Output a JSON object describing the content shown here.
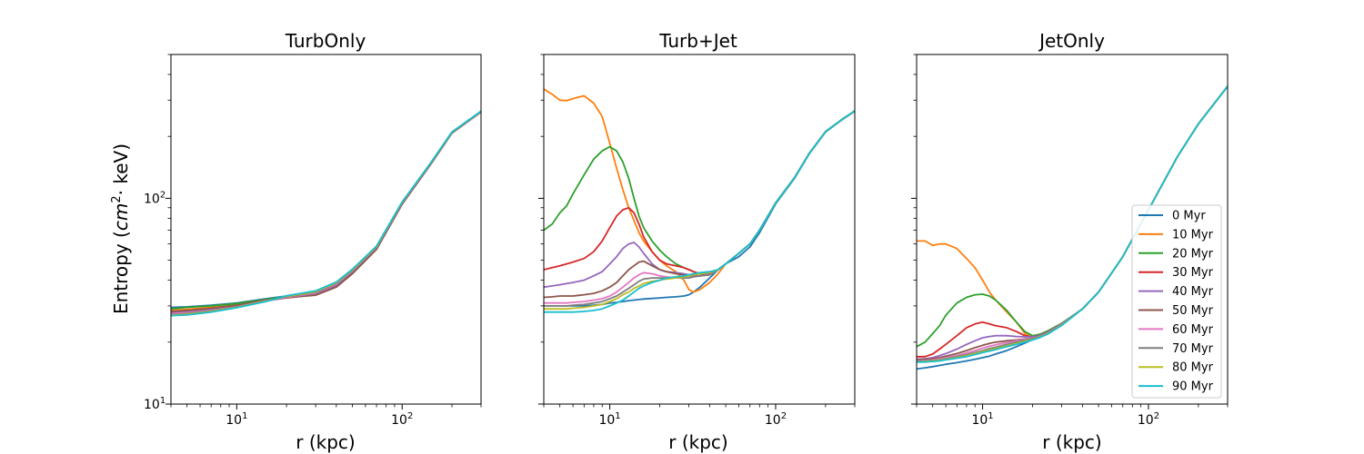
{
  "chart_data": [
    {
      "type": "line",
      "title": "TurbOnly",
      "xlabel": "r (kpc)",
      "ylabel": "Entropy (cm²· keV)",
      "xscale": "log",
      "yscale": "log",
      "xlim": [
        4,
        300
      ],
      "ylim": [
        10,
        500
      ],
      "x": [
        4,
        5,
        7,
        10,
        15,
        20,
        30,
        40,
        50,
        70,
        100,
        150,
        200,
        300
      ],
      "series": [
        {
          "name": "0 Myr",
          "values": [
            29.5,
            29.7,
            30.2,
            31.0,
            32.5,
            33.5,
            35.0,
            38.5,
            44.5,
            58,
            95,
            150,
            210,
            265
          ]
        },
        {
          "name": "10 Myr",
          "values": [
            28.5,
            28.9,
            29.5,
            30.3,
            32.0,
            33.0,
            34.5,
            38.0,
            44.0,
            57,
            94,
            148,
            208,
            263
          ]
        },
        {
          "name": "20 Myr",
          "values": [
            29.0,
            29.5,
            30.0,
            30.8,
            32.3,
            33.3,
            34.6,
            38.2,
            44.2,
            57.5,
            95,
            149,
            209,
            264
          ]
        },
        {
          "name": "30 Myr",
          "values": [
            28.0,
            28.3,
            29.0,
            30.0,
            31.8,
            32.8,
            34.0,
            37.5,
            43.5,
            57,
            94,
            148,
            208,
            263
          ]
        },
        {
          "name": "40 Myr",
          "values": [
            27.8,
            28.0,
            28.8,
            29.8,
            31.7,
            32.9,
            34.3,
            37.8,
            43.8,
            57.2,
            94.5,
            148.5,
            208.5,
            263.5
          ]
        },
        {
          "name": "50 Myr",
          "values": [
            28.2,
            28.5,
            29.2,
            30.2,
            32.0,
            32.9,
            33.8,
            37.0,
            43.0,
            56.5,
            93.5,
            147.5,
            207.5,
            262.5
          ]
        },
        {
          "name": "60 Myr",
          "values": [
            27.5,
            27.8,
            28.6,
            29.7,
            31.8,
            33.0,
            34.6,
            38.3,
            44.3,
            57.8,
            95,
            149,
            209,
            264
          ]
        },
        {
          "name": "70 Myr",
          "values": [
            27.2,
            27.5,
            28.4,
            29.6,
            31.7,
            33.2,
            34.9,
            38.6,
            44.6,
            58,
            95.5,
            149.5,
            209.5,
            264.5
          ]
        },
        {
          "name": "80 Myr",
          "values": [
            27.0,
            27.3,
            28.2,
            29.5,
            31.6,
            33.4,
            35.2,
            38.9,
            44.9,
            58.3,
            95.8,
            149.8,
            209.8,
            264.8
          ]
        },
        {
          "name": "90 Myr",
          "values": [
            26.9,
            27.1,
            28.0,
            29.4,
            31.5,
            33.6,
            35.5,
            39.2,
            45.2,
            58.6,
            96,
            150,
            210,
            265
          ]
        }
      ]
    },
    {
      "type": "line",
      "title": "Turb+Jet",
      "xlabel": "r (kpc)",
      "ylabel": "",
      "xscale": "log",
      "yscale": "log",
      "xlim": [
        4,
        300
      ],
      "ylim": [
        10,
        500
      ],
      "x": [
        4,
        4.5,
        5,
        5.5,
        6,
        7,
        8,
        9,
        10,
        11,
        12,
        13,
        14,
        15,
        16,
        18,
        20,
        22,
        25,
        28,
        30,
        32,
        35,
        40,
        45,
        50,
        60,
        70,
        80,
        100,
        130,
        160,
        200,
        250,
        300
      ],
      "series": [
        {
          "name": "0 Myr",
          "values": [
            30,
            30,
            30,
            30,
            30,
            30,
            30.2,
            30.5,
            31,
            31.2,
            31.5,
            31.8,
            32,
            32.2,
            32.4,
            32.6,
            32.8,
            33,
            33.2,
            33.5,
            34,
            35,
            37,
            41,
            45,
            48,
            52,
            58,
            68,
            94,
            125,
            165,
            210,
            240,
            265
          ]
        },
        {
          "name": "10 Myr",
          "values": [
            340,
            320,
            300,
            298,
            305,
            315,
            290,
            250,
            185,
            140,
            110,
            90,
            78,
            68,
            62,
            55,
            50,
            47,
            44,
            40,
            36,
            35,
            36,
            39,
            43,
            48,
            54,
            60,
            70,
            95,
            126,
            166,
            211,
            241,
            266
          ]
        },
        {
          "name": "20 Myr",
          "values": [
            70,
            75,
            85,
            92,
            105,
            130,
            155,
            170,
            178,
            170,
            150,
            125,
            100,
            82,
            72,
            62,
            56,
            52,
            48,
            46,
            45,
            44,
            43,
            43,
            45,
            48,
            54,
            60,
            70,
            95,
            126,
            166,
            211,
            241,
            266
          ]
        },
        {
          "name": "30 Myr",
          "values": [
            45,
            46,
            47,
            48,
            49,
            51,
            55,
            62,
            72,
            82,
            88,
            90,
            85,
            75,
            65,
            55,
            50,
            48,
            47,
            46,
            45,
            44,
            43,
            43,
            45,
            48,
            54,
            60,
            70,
            95,
            126,
            166,
            211,
            241,
            266
          ]
        },
        {
          "name": "40 Myr",
          "values": [
            37,
            37.5,
            38,
            38.5,
            39,
            40,
            42,
            44,
            48,
            52,
            57,
            60,
            61,
            58,
            54,
            48,
            45,
            44,
            43.5,
            43,
            42.5,
            42,
            42,
            42.5,
            45,
            48,
            54,
            60,
            70,
            95,
            126,
            166,
            211,
            241,
            266
          ]
        },
        {
          "name": "50 Myr",
          "values": [
            33,
            33.2,
            33.5,
            33.5,
            33.5,
            34,
            34.5,
            35.5,
            37,
            39,
            42,
            45,
            47,
            49,
            49.5,
            47,
            45,
            44,
            43,
            42.5,
            42,
            42,
            42,
            42.5,
            45,
            48,
            54,
            60,
            70,
            95,
            126,
            166,
            211,
            241,
            266
          ]
        },
        {
          "name": "60 Myr",
          "values": [
            31,
            31,
            31,
            31,
            31.2,
            31.5,
            32,
            32.5,
            33.5,
            35,
            37,
            39,
            41,
            42.5,
            43.5,
            43,
            42,
            41.5,
            41,
            41,
            41,
            41.5,
            42,
            42.5,
            45,
            48,
            54,
            60,
            70,
            95,
            126,
            166,
            211,
            241,
            266
          ]
        },
        {
          "name": "70 Myr",
          "values": [
            30,
            30,
            30,
            30,
            30.2,
            30.5,
            31,
            31.5,
            32.5,
            33.5,
            35,
            36.5,
            38,
            39.5,
            40.5,
            41,
            41,
            41,
            41,
            41,
            41,
            41.5,
            42,
            42.5,
            45,
            48,
            54,
            60,
            70,
            95,
            126,
            166,
            211,
            241,
            266
          ]
        },
        {
          "name": "80 Myr",
          "values": [
            29,
            29,
            29,
            29,
            29.2,
            29.5,
            30,
            30.5,
            31.5,
            32.5,
            34,
            35,
            36.5,
            37.5,
            38.5,
            39.5,
            40,
            40.5,
            41,
            41.5,
            42,
            42.5,
            43,
            43.5,
            45,
            48,
            54,
            60,
            70,
            95,
            126,
            166,
            211,
            241,
            266
          ]
        },
        {
          "name": "90 Myr",
          "values": [
            28,
            28,
            28,
            28,
            28,
            28.2,
            28.5,
            29,
            30,
            31,
            32,
            33.5,
            35,
            36.5,
            37.5,
            39,
            40,
            41,
            41.5,
            42,
            42.5,
            43,
            43.5,
            44,
            45,
            48,
            54,
            60,
            70,
            95,
            126,
            166,
            211,
            241,
            266
          ]
        }
      ]
    },
    {
      "type": "line",
      "title": "JetOnly",
      "xlabel": "r (kpc)",
      "ylabel": "",
      "xscale": "log",
      "yscale": "log",
      "xlim": [
        4,
        300
      ],
      "ylim": [
        10,
        500
      ],
      "x": [
        4,
        4.5,
        5,
        5.5,
        6,
        7,
        8,
        9,
        10,
        11,
        12,
        14,
        16,
        18,
        20,
        22,
        25,
        30,
        40,
        50,
        70,
        100,
        150,
        200,
        300
      ],
      "series": [
        {
          "name": "0 Myr",
          "values": [
            14.8,
            15,
            15.2,
            15.4,
            15.6,
            15.9,
            16.2,
            16.5,
            16.8,
            17.1,
            17.5,
            18.2,
            19,
            19.8,
            20.6,
            21.4,
            22.5,
            24.5,
            29,
            35,
            52,
            88,
            160,
            230,
            350
          ]
        },
        {
          "name": "10 Myr",
          "values": [
            62,
            62,
            59,
            60,
            60,
            57,
            51,
            46,
            40,
            35,
            32,
            28,
            25,
            22,
            21,
            21.5,
            22.5,
            24.5,
            29,
            35,
            52,
            88,
            160,
            230,
            350
          ]
        },
        {
          "name": "20 Myr",
          "values": [
            19,
            20,
            22,
            24,
            27,
            31,
            33,
            34,
            34.2,
            33.5,
            32,
            28.5,
            25,
            22.5,
            21.5,
            21.8,
            22.8,
            24.7,
            29,
            35,
            52,
            88,
            160,
            230,
            350
          ]
        },
        {
          "name": "30 Myr",
          "values": [
            17,
            17,
            17.5,
            18.5,
            19.5,
            21.5,
            23.5,
            24.5,
            25,
            24.5,
            24,
            23.5,
            22.5,
            21.5,
            21.2,
            21.5,
            22.5,
            24.5,
            29,
            35,
            52,
            88,
            160,
            230,
            350
          ]
        },
        {
          "name": "40 Myr",
          "values": [
            16.5,
            16.6,
            16.8,
            17.2,
            17.6,
            18.5,
            19.5,
            20.3,
            21,
            21.3,
            21.5,
            21.5,
            21.3,
            21.2,
            21.2,
            21.5,
            22.5,
            24.5,
            29,
            35,
            52,
            88,
            160,
            230,
            350
          ]
        },
        {
          "name": "50 Myr",
          "values": [
            16.4,
            16.5,
            16.6,
            16.8,
            17.1,
            17.6,
            18.2,
            18.8,
            19.3,
            19.7,
            20,
            20.3,
            20.5,
            20.7,
            20.9,
            21.3,
            22.3,
            24.4,
            29,
            35,
            52,
            88,
            160,
            230,
            350
          ]
        },
        {
          "name": "60 Myr",
          "values": [
            16.2,
            16.3,
            16.4,
            16.6,
            16.8,
            17.2,
            17.7,
            18.2,
            18.7,
            19.1,
            19.4,
            19.9,
            20.3,
            20.6,
            20.9,
            21.3,
            22.3,
            24.4,
            29,
            35,
            52,
            88,
            160,
            230,
            350
          ]
        },
        {
          "name": "70 Myr",
          "values": [
            16.1,
            16.2,
            16.3,
            16.4,
            16.6,
            17,
            17.4,
            17.8,
            18.2,
            18.6,
            18.9,
            19.5,
            20,
            20.4,
            20.8,
            21.2,
            22.2,
            24.3,
            29,
            35,
            52,
            88,
            160,
            230,
            350
          ]
        },
        {
          "name": "80 Myr",
          "values": [
            16,
            16.1,
            16.2,
            16.3,
            16.5,
            16.8,
            17.2,
            17.6,
            18,
            18.3,
            18.6,
            19.2,
            19.7,
            20.2,
            20.6,
            21.1,
            22.1,
            24.2,
            29,
            35,
            52,
            88,
            160,
            230,
            350
          ]
        },
        {
          "name": "90 Myr",
          "values": [
            16,
            16,
            16.1,
            16.2,
            16.4,
            16.7,
            17,
            17.4,
            17.8,
            18.1,
            18.4,
            19,
            19.5,
            20,
            20.5,
            21,
            22,
            24.1,
            29,
            35,
            52,
            88,
            160,
            230,
            350
          ]
        }
      ]
    }
  ],
  "axes": {
    "ylabel_main": "Entropy (",
    "ylabel_unit_base": "cm",
    "ylabel_unit_exp": "2",
    "ylabel_unit_rest": "· keV)",
    "xlabel": "r (kpc)",
    "x_tick_labels": [
      {
        "base": "10",
        "exp": "1"
      },
      {
        "base": "10",
        "exp": "2"
      }
    ],
    "y_tick_labels": [
      {
        "base": "10",
        "exp": "1"
      },
      {
        "base": "10",
        "exp": "2"
      }
    ]
  },
  "legend": {
    "location": "lower-right",
    "panel": 2,
    "entries": [
      "0 Myr",
      "10 Myr",
      "20 Myr",
      "30 Myr",
      "40 Myr",
      "50 Myr",
      "60 Myr",
      "70 Myr",
      "80 Myr",
      "90 Myr"
    ]
  },
  "colors": {
    "series": [
      "#1f77b4",
      "#ff7f0e",
      "#2ca02c",
      "#d62728",
      "#9467bd",
      "#8c564b",
      "#e377c2",
      "#7f7f7f",
      "#bcbd22",
      "#17becf"
    ]
  }
}
